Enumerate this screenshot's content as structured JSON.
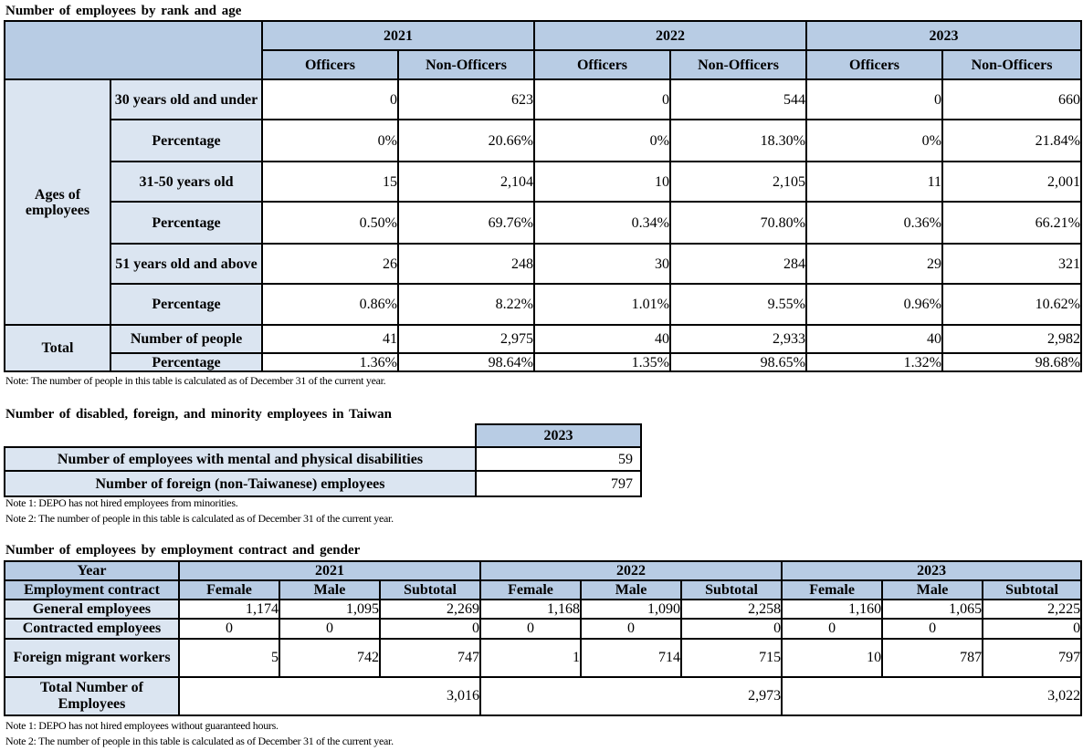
{
  "section1": {
    "title": "Number of employees by rank and age",
    "years": [
      "2021",
      "2022",
      "2023"
    ],
    "rank_headers": [
      "Officers",
      "Non-Officers"
    ],
    "group_label": "Ages of employees",
    "rows": [
      {
        "label": "30 years old and under",
        "values": [
          "0",
          "623",
          "0",
          "544",
          "0",
          "660"
        ]
      },
      {
        "label": "Percentage",
        "values": [
          "0%",
          "20.66%",
          "0%",
          "18.30%",
          "0%",
          "21.84%"
        ]
      },
      {
        "label": "31-50 years old",
        "values": [
          "15",
          "2,104",
          "10",
          "2,105",
          "11",
          "2,001"
        ]
      },
      {
        "label": "Percentage",
        "values": [
          "0.50%",
          "69.76%",
          "0.34%",
          "70.80%",
          "0.36%",
          "66.21%"
        ]
      },
      {
        "label": "51 years old and above",
        "values": [
          "26",
          "248",
          "30",
          "284",
          "29",
          "321"
        ]
      },
      {
        "label": "Percentage",
        "values": [
          "0.86%",
          "8.22%",
          "1.01%",
          "9.55%",
          "0.96%",
          "10.62%"
        ]
      }
    ],
    "total_label": "Total",
    "total_rows": [
      {
        "label": "Number of people",
        "values": [
          "41",
          "2,975",
          "40",
          "2,933",
          "40",
          "2,982"
        ]
      },
      {
        "label": "Percentage",
        "values": [
          "1.36%",
          "98.64%",
          "1.35%",
          "98.65%",
          "1.32%",
          "98.68%"
        ]
      }
    ],
    "note": "Note: The number of people in this table is calculated as of December 31 of the current year."
  },
  "section2": {
    "title": "Number of disabled, foreign, and minority employees in Taiwan",
    "year": "2023",
    "rows": [
      {
        "label": "Number of employees with mental and physical disabilities",
        "value": "59"
      },
      {
        "label": "Number of foreign (non-Taiwanese) employees",
        "value": "797"
      }
    ],
    "note1": "Note 1: DEPO has not hired employees from minorities.",
    "note2": "Note 2: The number of people in this table is calculated as of December 31 of the current year."
  },
  "section3": {
    "title": "Number of employees by employment contract and gender",
    "year_label": "Year",
    "contract_label": "Employment contract",
    "years": [
      "2021",
      "2022",
      "2023"
    ],
    "sub_headers": [
      "Female",
      "Male",
      "Subtotal"
    ],
    "rows": [
      {
        "label": "General employees",
        "values": [
          "1,174",
          "1,095",
          "2,269",
          "1,168",
          "1,090",
          "2,258",
          "1,160",
          "1,065",
          "2,225"
        ]
      },
      {
        "label": "Contracted employees",
        "values": [
          "0",
          "0",
          "0",
          "0",
          "0",
          "0",
          "0",
          "0",
          "0"
        ]
      },
      {
        "label": "Foreign migrant workers",
        "values": [
          "5",
          "742",
          "747",
          "1",
          "714",
          "715",
          "10",
          "787",
          "797"
        ]
      }
    ],
    "total_label": "Total Number of Employees",
    "totals": [
      "3,016",
      "2,973",
      "3,022"
    ],
    "note1": "Note 1: DEPO has not hired employees without guaranteed hours.",
    "note2": "Note 2: The number of people in this table is calculated as of December 31 of the current year."
  }
}
